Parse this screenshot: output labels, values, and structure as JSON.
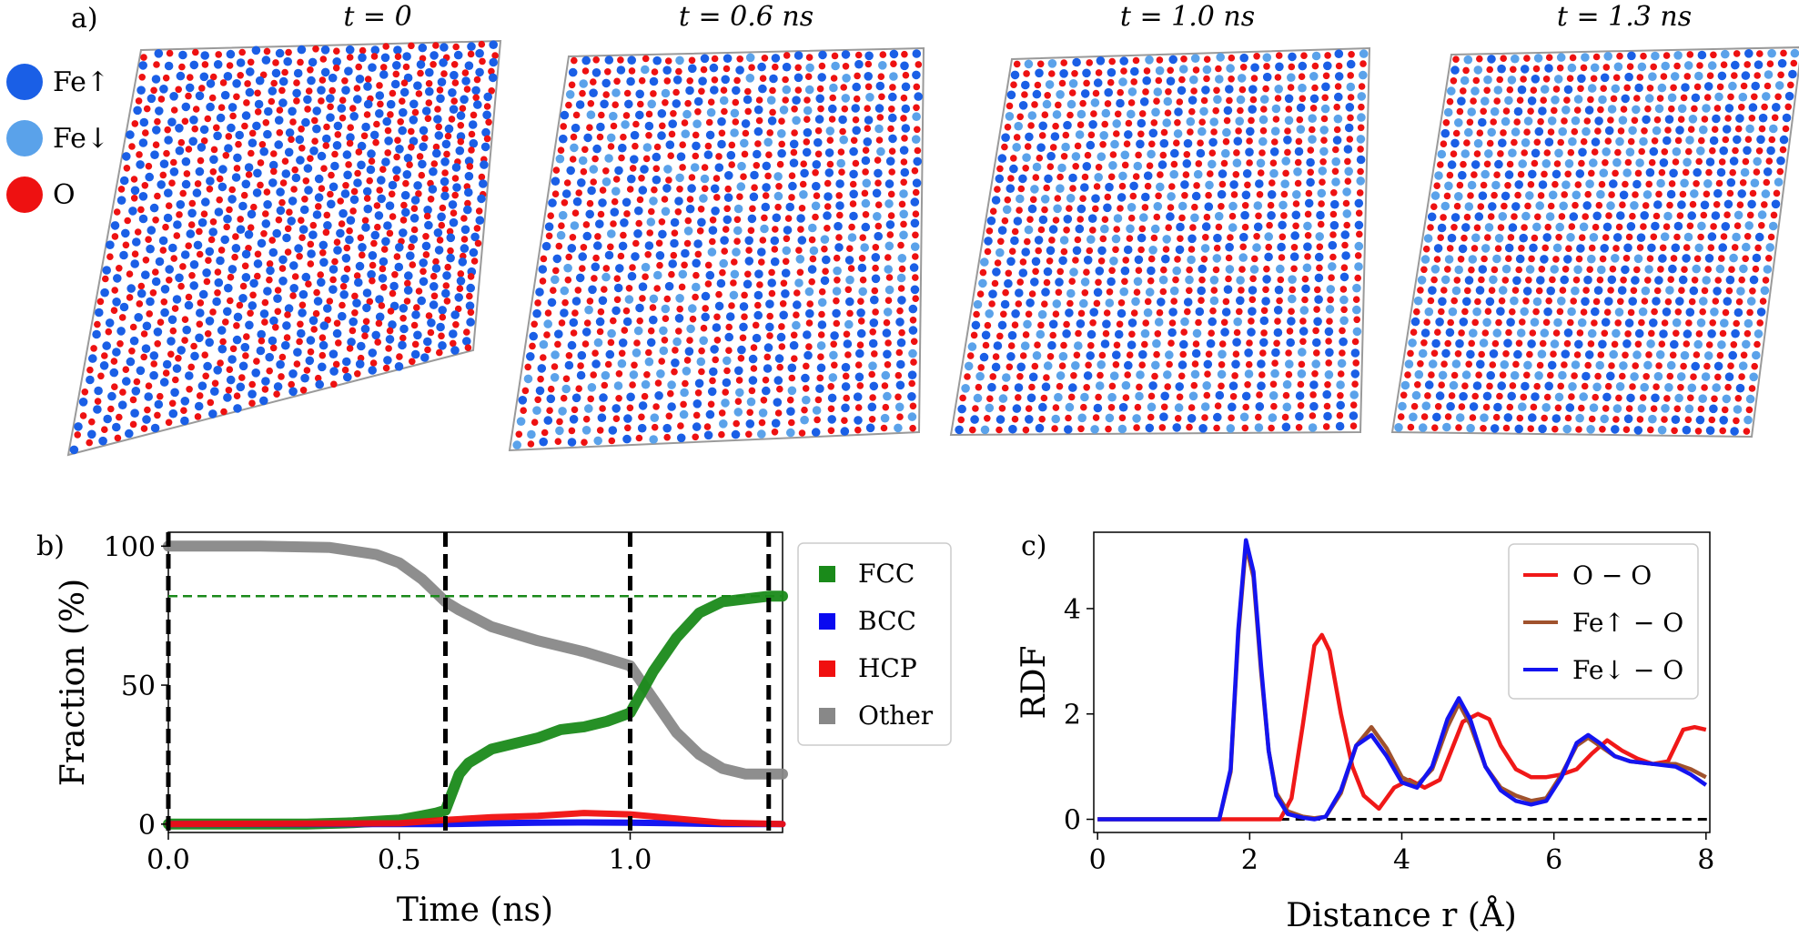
{
  "panel_labels": {
    "a": "a)",
    "b": "b)",
    "c": "c)"
  },
  "snapshots": {
    "titles": [
      "t = 0",
      "t = 0.6 ns",
      "t = 1.0 ns",
      "t = 1.3 ns"
    ],
    "fraction_fe_down": [
      0.0,
      0.35,
      0.45,
      0.55
    ],
    "legend": [
      {
        "label": "Fe↑",
        "color": "#1a5fe6"
      },
      {
        "label": "Fe↓",
        "color": "#5aa2ea"
      },
      {
        "label": "O",
        "color": "#ee1111"
      }
    ]
  },
  "colors": {
    "fcc": "#1a8a1a",
    "bcc": "#0a0af0",
    "hcp": "#f01010",
    "other": "#888888",
    "oo": "#f01818",
    "feup_o": "#a0522d",
    "fedown_o": "#1414f0"
  },
  "chart_data": [
    {
      "type": "scatter",
      "title": "",
      "xlabel": "Time (ns)",
      "ylabel": "Fraction (%)",
      "xlim": [
        0,
        1.33
      ],
      "ylim": [
        -3,
        105
      ],
      "xticks": [
        0.0,
        0.5,
        1.0
      ],
      "xtick_labels": [
        "0.0",
        "0.5",
        "1.0"
      ],
      "yticks": [
        0,
        50,
        100
      ],
      "ytick_labels": [
        "0",
        "50",
        "100"
      ],
      "vlines": [
        0.0,
        0.6,
        1.0,
        1.3
      ],
      "hline": 82,
      "legend_position": "right-outside",
      "series": [
        {
          "name": "FCC",
          "x": [
            0,
            0.3,
            0.4,
            0.5,
            0.55,
            0.58,
            0.6,
            0.63,
            0.65,
            0.7,
            0.75,
            0.8,
            0.85,
            0.9,
            0.95,
            1.0,
            1.05,
            1.1,
            1.15,
            1.2,
            1.25,
            1.3,
            1.33
          ],
          "y": [
            0,
            0,
            0.5,
            1.5,
            3,
            4,
            5,
            18,
            22,
            27,
            29,
            31,
            34,
            35,
            37,
            40,
            55,
            67,
            76,
            80,
            81,
            82,
            82
          ]
        },
        {
          "name": "BCC",
          "x": [
            0,
            0.6,
            0.7,
            0.8,
            0.9,
            1.0,
            1.1,
            1.2,
            1.33
          ],
          "y": [
            0,
            0,
            0.3,
            0.5,
            0.6,
            0.5,
            0.3,
            0,
            0
          ]
        },
        {
          "name": "HCP",
          "x": [
            0,
            0.5,
            0.6,
            0.7,
            0.8,
            0.9,
            1.0,
            1.1,
            1.2,
            1.33
          ],
          "y": [
            0,
            0.3,
            1.5,
            2.5,
            3,
            4,
            3.5,
            2,
            0.5,
            0
          ]
        },
        {
          "name": "Other",
          "x": [
            0,
            0.2,
            0.35,
            0.45,
            0.5,
            0.55,
            0.6,
            0.63,
            0.7,
            0.8,
            0.9,
            1.0,
            1.05,
            1.1,
            1.15,
            1.2,
            1.25,
            1.3,
            1.33
          ],
          "y": [
            100,
            100,
            99.5,
            97,
            94,
            88,
            80,
            77,
            71,
            66,
            62,
            57,
            45,
            33,
            25,
            20,
            18,
            18,
            18
          ]
        }
      ]
    },
    {
      "type": "line",
      "title": "",
      "xlabel": "Distance r (Å)",
      "ylabel": "RDF",
      "xlim": [
        -0.05,
        8.05
      ],
      "ylim": [
        -0.25,
        5.45
      ],
      "xticks": [
        0,
        2,
        4,
        6,
        8
      ],
      "xtick_labels": [
        "0",
        "2",
        "4",
        "6",
        "8"
      ],
      "yticks": [
        0,
        2,
        4
      ],
      "ytick_labels": [
        "0",
        "2",
        "4"
      ],
      "hline": 0,
      "legend_position": "top-right",
      "series": [
        {
          "name": "O − O",
          "x": [
            0,
            2.4,
            2.55,
            2.7,
            2.85,
            2.95,
            3.05,
            3.2,
            3.35,
            3.5,
            3.7,
            3.9,
            4.1,
            4.3,
            4.5,
            4.65,
            4.8,
            5.0,
            5.15,
            5.3,
            5.5,
            5.7,
            5.9,
            6.1,
            6.3,
            6.5,
            6.7,
            6.9,
            7.1,
            7.3,
            7.5,
            7.7,
            7.85,
            8.0
          ],
          "y": [
            0,
            0,
            0.4,
            1.8,
            3.3,
            3.5,
            3.2,
            2.0,
            1.0,
            0.45,
            0.2,
            0.6,
            0.75,
            0.6,
            0.75,
            1.3,
            1.85,
            2.0,
            1.9,
            1.4,
            0.95,
            0.8,
            0.8,
            0.85,
            0.95,
            1.25,
            1.5,
            1.3,
            1.15,
            1.05,
            1.1,
            1.7,
            1.75,
            1.7
          ]
        },
        {
          "name": "Fe↑ − O",
          "x": [
            0,
            1.6,
            1.75,
            1.85,
            1.95,
            2.05,
            2.15,
            2.25,
            2.35,
            2.5,
            2.7,
            2.85,
            3.0,
            3.2,
            3.4,
            3.6,
            3.8,
            4.0,
            4.2,
            4.4,
            4.6,
            4.75,
            4.9,
            5.1,
            5.3,
            5.5,
            5.7,
            5.9,
            6.1,
            6.3,
            6.45,
            6.6,
            6.8,
            7.0,
            7.3,
            7.6,
            7.8,
            8.0
          ],
          "y": [
            0,
            0,
            0.9,
            3.5,
            5.2,
            4.6,
            2.8,
            1.3,
            0.5,
            0.15,
            0.05,
            0.02,
            0.05,
            0.5,
            1.4,
            1.75,
            1.35,
            0.8,
            0.65,
            0.95,
            1.75,
            2.2,
            1.8,
            1.0,
            0.6,
            0.45,
            0.35,
            0.4,
            0.85,
            1.4,
            1.55,
            1.4,
            1.2,
            1.1,
            1.05,
            1.05,
            0.95,
            0.8
          ]
        },
        {
          "name": "Fe↓ − O",
          "x": [
            0,
            1.6,
            1.75,
            1.85,
            1.95,
            2.05,
            2.15,
            2.25,
            2.35,
            2.5,
            2.7,
            2.85,
            3.0,
            3.2,
            3.4,
            3.6,
            3.8,
            4.0,
            4.2,
            4.4,
            4.6,
            4.75,
            4.9,
            5.1,
            5.3,
            5.5,
            5.7,
            5.9,
            6.1,
            6.3,
            6.45,
            6.6,
            6.8,
            7.0,
            7.3,
            7.6,
            7.8,
            8.0
          ],
          "y": [
            0,
            0,
            0.95,
            3.6,
            5.3,
            4.7,
            2.9,
            1.3,
            0.45,
            0.1,
            0.03,
            0.0,
            0.05,
            0.55,
            1.4,
            1.6,
            1.2,
            0.7,
            0.6,
            1.0,
            1.9,
            2.3,
            1.9,
            1.0,
            0.55,
            0.35,
            0.28,
            0.35,
            0.8,
            1.45,
            1.6,
            1.45,
            1.2,
            1.1,
            1.05,
            1.0,
            0.85,
            0.65
          ]
        }
      ]
    }
  ]
}
